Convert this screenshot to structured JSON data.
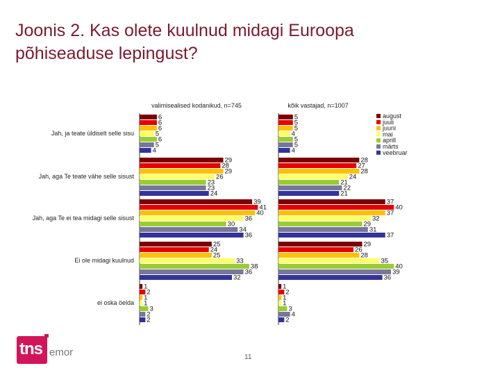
{
  "slide": {
    "title_line1": "Joonis 2. Kas olete kuulnud midagi Euroopa",
    "title_line2": "põhiseaduse lepingust?",
    "page_number": "11",
    "logo_text": "tns",
    "logo_suffix": "emor"
  },
  "chart_data": {
    "type": "bar",
    "orientation": "horizontal",
    "categories": [
      "Jah, ja teate üldiselt selle sisu",
      "Jah, aga Te teate vähe selle sisust",
      "Jah, aga Te ei tea midagi selle sisust",
      "Ei ole midagi kuulnud",
      "ei oska öelda"
    ],
    "legend_position": "right",
    "xlim": [
      0,
      45
    ],
    "panels": [
      {
        "title": "valimisealised kodanikud, n=745",
        "series": [
          {
            "name": "august",
            "color": "#7b0000",
            "values": [
              6,
              29,
              39,
              25,
              1
            ]
          },
          {
            "name": "juuli",
            "color": "#e60000",
            "values": [
              6,
              28,
              41,
              24,
              2
            ]
          },
          {
            "name": "juuni",
            "color": "#ffc000",
            "values": [
              6,
              29,
              40,
              25,
              1
            ]
          },
          {
            "name": "mai",
            "color": "#ffff66",
            "values": [
              5,
              26,
              36,
              33,
              1
            ]
          },
          {
            "name": "aprill",
            "color": "#99cc33",
            "values": [
              6,
              23,
              30,
              38,
              3
            ]
          },
          {
            "name": "märts",
            "color": "#777799",
            "values": [
              5,
              23,
              34,
              36,
              2
            ]
          },
          {
            "name": "veebruar",
            "color": "#333399",
            "values": [
              4,
              24,
              36,
              32,
              2
            ]
          }
        ]
      },
      {
        "title": "kõik vastajad, n=1007",
        "series": [
          {
            "name": "august",
            "color": "#7b0000",
            "values": [
              5,
              28,
              37,
              29,
              1
            ]
          },
          {
            "name": "juuli",
            "color": "#e60000",
            "values": [
              5,
              27,
              40,
              26,
              2
            ]
          },
          {
            "name": "juuni",
            "color": "#ffc000",
            "values": [
              5,
              28,
              37,
              28,
              1
            ]
          },
          {
            "name": "mai",
            "color": "#ffff66",
            "values": [
              4,
              24,
              32,
              35,
              1
            ]
          },
          {
            "name": "aprill",
            "color": "#99cc33",
            "values": [
              5,
              21,
              29,
              40,
              3
            ]
          },
          {
            "name": "märts",
            "color": "#777799",
            "values": [
              5,
              22,
              31,
              39,
              4
            ]
          },
          {
            "name": "veebruar",
            "color": "#333399",
            "values": [
              4,
              21,
              37,
              36,
              2
            ]
          }
        ]
      }
    ]
  }
}
